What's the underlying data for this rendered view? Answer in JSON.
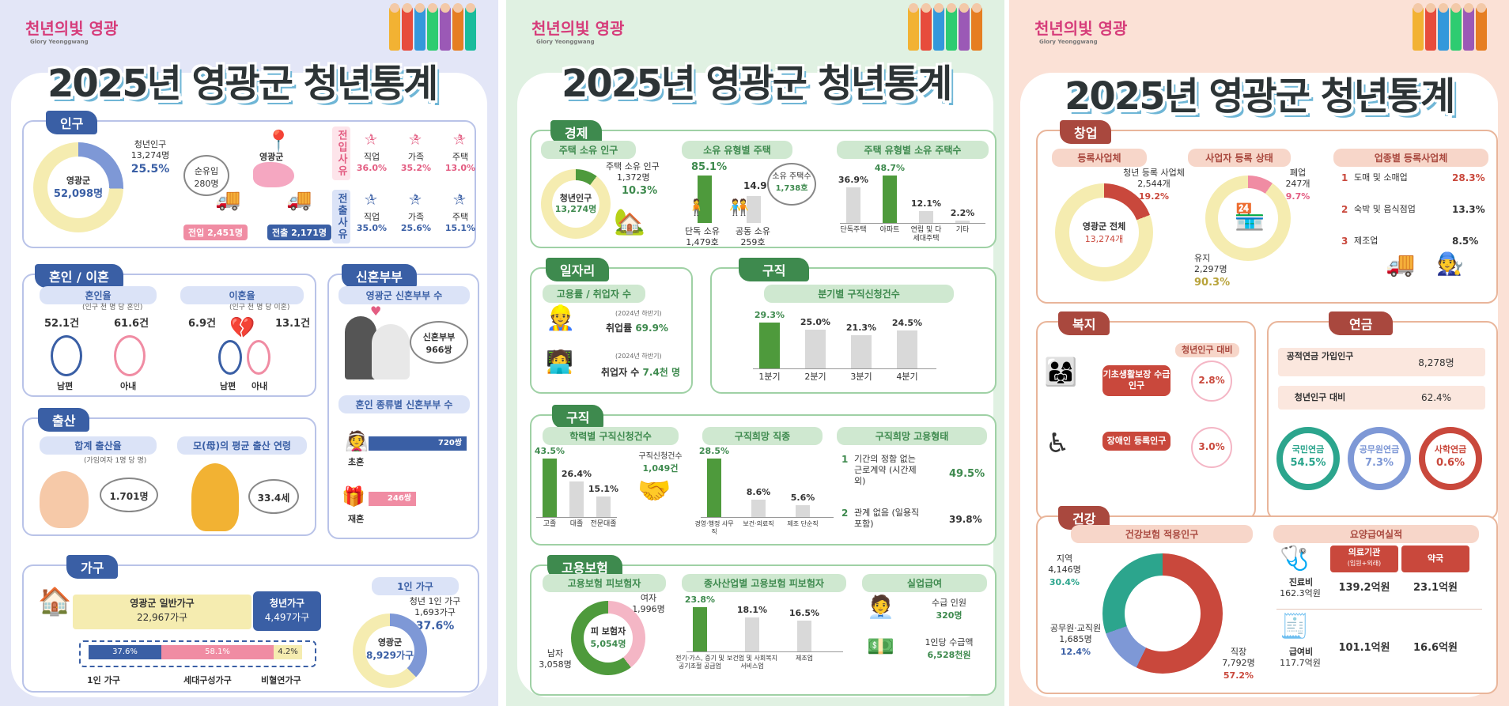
{
  "p1": {
    "logo": "천년의빛 영광",
    "logo_sub": "Glory Yeonggwang",
    "title": "2025년 영광군 청년통계",
    "pop": {
      "sec": "인구",
      "center1": "영광군",
      "center2": "52,098명",
      "young_l": "청년인구",
      "young_v": "13,274명",
      "young_p": "25.5%",
      "net_l": "순유입",
      "net_v": "280명",
      "city": "영광군",
      "in": "전입 2,451명",
      "out": "전출 2,171명",
      "in_v": "전입사유",
      "out_v": "전출사유",
      "in_r": [
        {
          "l": "직업",
          "v": "36.0%",
          "n": "1"
        },
        {
          "l": "가족",
          "v": "35.2%",
          "n": "2"
        },
        {
          "l": "주택",
          "v": "13.0%",
          "n": "3"
        }
      ],
      "out_r": [
        {
          "l": "직업",
          "v": "35.0%",
          "n": "1"
        },
        {
          "l": "가족",
          "v": "25.6%",
          "n": "2"
        },
        {
          "l": "주택",
          "v": "15.1%",
          "n": "3"
        }
      ]
    },
    "mar": {
      "sec": "혼인 / 이혼",
      "mar_sub": "혼인율",
      "mar_note": "(인구 천 명 당 혼인)",
      "m_h": "52.1건",
      "m_w": "61.6건",
      "div_sub": "이혼율",
      "div_note": "(인구 천 명 당 이혼)",
      "d_h": "6.9건",
      "d_w": "13.1건",
      "husband": "남편",
      "wife": "아내"
    },
    "nc": {
      "sec": "신혼부부",
      "sub1": "영광군 신혼부부 수",
      "count_l": "신혼부부",
      "count_v": "966쌍",
      "sub2": "혼인 종류별 신혼부부 수",
      "first_v": "720쌍",
      "first_l": "초혼",
      "re_v": "246쌍",
      "re_l": "재혼"
    },
    "birth": {
      "sec": "출산",
      "sub1": "합계 출산율",
      "note1": "(가임여자 1명 당 명)",
      "val1": "1.701명",
      "sub2": "모(母)의 평균 출산 연령",
      "val2": "33.4세"
    },
    "hh": {
      "sec": "가구",
      "gen_l": "영광군 일반가구",
      "gen_v": "22,967가구",
      "yh_l": "청년가구",
      "yh_v": "4,497가구",
      "b1": "37.6%",
      "b2": "58.1%",
      "b3": "4.2%",
      "l1": "1인 가구",
      "l2": "세대구성가구",
      "l3": "비혈연가구",
      "one_sub": "1인 가구",
      "one_l": "청년 1인 가구",
      "one_v": "1,693가구",
      "one_p": "37.6%",
      "c1": "영광군",
      "c2": "8,929가구"
    }
  },
  "p2": {
    "logo": "천년의빛 영광",
    "logo_sub": "Glory Yeonggwang",
    "title": "2025년 영광군 청년통계",
    "eco": {
      "sec": "경제",
      "sub1": "주택 소유 인구",
      "own_l": "주택 소유 인구",
      "own_v": "1,372명",
      "own_p": "10.3%",
      "c1": "청년인구",
      "c2": "13,274명",
      "sub2": "소유 유형별 주택",
      "s_p": "85.1%",
      "j_p": "14.9%",
      "s_l": "단독 소유",
      "s_v": "1,479호",
      "j_l": "공동 소유",
      "j_v": "259호",
      "hc_l": "소유 주택수",
      "hc_v": "1,738호",
      "sub3": "주택 유형별 소유 주택수",
      "types": [
        {
          "p": "36.9%",
          "l": "단독주택"
        },
        {
          "p": "48.7%",
          "l": "아파트"
        },
        {
          "p": "12.1%",
          "l": "연립 및 다세대주택"
        },
        {
          "p": "2.2%",
          "l": "기타"
        }
      ]
    },
    "job": {
      "sec": "일자리",
      "sub": "고용률 / 취업자 수",
      "n1": "(2024년 하반기)",
      "emp_l": "취업률",
      "emp_v": "69.9%",
      "n2": "(2024년 하반기)",
      "wk_l": "취업자 수",
      "wk_v": "7.4천 명"
    },
    "seek": {
      "sec": "구직",
      "sub": "분기별 구직신청건수",
      "q": [
        {
          "p": "29.3%",
          "l": "1분기"
        },
        {
          "p": "25.0%",
          "l": "2분기"
        },
        {
          "p": "21.3%",
          "l": "3분기"
        },
        {
          "p": "24.5%",
          "l": "4분기"
        }
      ]
    },
    "seek2": {
      "sec": "구직",
      "sub1": "학력별 구직신청건수",
      "tot_l": "구직신청건수",
      "tot_v": "1,049건",
      "edu": [
        {
          "p": "43.5%",
          "l": "고졸"
        },
        {
          "p": "26.4%",
          "l": "대졸"
        },
        {
          "p": "15.1%",
          "l": "전문대졸"
        }
      ],
      "sub2": "구직희망 직종",
      "occ": [
        {
          "p": "28.5%",
          "l": "경영·행정 사무직"
        },
        {
          "p": "8.6%",
          "l": "보건·의료직"
        },
        {
          "p": "5.6%",
          "l": "제조 단순직"
        }
      ],
      "sub3": "구직희망 고용형태",
      "f1_n": "1",
      "f1_l": "기간의 정함 없는 근로계약 (시간제 외)",
      "f1_v": "49.5%",
      "f2_n": "2",
      "f2_l": "관계 없음 (일용직 포함)",
      "f2_v": "39.8%"
    },
    "ins": {
      "sec": "고용보험",
      "sub1": "고용보험 피보험자",
      "f_l": "여자",
      "f_v": "1,996명",
      "m_l": "남자",
      "m_v": "3,058명",
      "c1": "피 보험자",
      "c2": "5,054명",
      "sub2": "종사산업별 고용보험 피보험자",
      "ind": [
        {
          "p": "23.8%",
          "l": "전기·가스, 증기 및 공기조절 공급업"
        },
        {
          "p": "18.1%",
          "l": "보건업 및 사회복지 서비스업"
        },
        {
          "p": "16.5%",
          "l": "제조업"
        }
      ],
      "sub3": "실업급여",
      "r_l": "수급 인원",
      "r_v": "320명",
      "a_l": "1인당 수급액",
      "a_v": "6,528천원"
    }
  },
  "p3": {
    "logo": "천년의빛 영광",
    "logo_sub": "Glory Yeonggwang",
    "title": "2025년 영광군 청년통계",
    "st": {
      "sec": "창업",
      "sub1": "등록사업체",
      "y_l": "청년 등록 사업체",
      "y_v": "2,544개",
      "y_p": "19.2%",
      "c1": "영광군 전체",
      "c2": "13,274개",
      "sub2": "사업자 등록 상태",
      "cl_l": "폐업",
      "cl_v": "247개",
      "cl_p": "9.7%",
      "op_l": "유지",
      "op_v": "2,297명",
      "op_p": "90.3%",
      "sub3": "업종별 등록사업체",
      "ind": [
        {
          "n": "1",
          "l": "도매 및 소매업",
          "v": "28.3%"
        },
        {
          "n": "2",
          "l": "숙박 및 음식점업",
          "v": "13.3%"
        },
        {
          "n": "3",
          "l": "제조업",
          "v": "8.5%"
        }
      ]
    },
    "wel": {
      "sec": "복지",
      "note": "청년인구 대비",
      "a": "기초생활보장 수급인구",
      "a_v": "2.8%",
      "b": "장애인 등록인구",
      "b_v": "3.0%"
    },
    "pen": {
      "sec": "연금",
      "r1_l": "공적연금 가입인구",
      "r1_v": "8,278명",
      "r2_l": "청년인구 대비",
      "r2_v": "62.4%",
      "c": [
        {
          "l": "국민연금",
          "v": "54.5%"
        },
        {
          "l": "공무원연금",
          "v": "7.3%"
        },
        {
          "l": "사학연금",
          "v": "0.6%"
        }
      ]
    },
    "hea": {
      "sec": "건강",
      "sub1": "건강보험 적용인구",
      "r_l": "지역",
      "r_v": "4,146명",
      "r_p": "30.4%",
      "g_l": "공무원·교직원",
      "g_v": "1,685명",
      "g_p": "12.4%",
      "w_l": "직장",
      "w_v": "7,792명",
      "w_p": "57.2%",
      "sub2": "요양급여실적",
      "h1": "의료기관",
      "h1_n": "(입원+외래)",
      "h2": "약국",
      "t_l": "진료비",
      "t_v": "162.3억원",
      "t1": "139.2억원",
      "t2": "23.1억원",
      "p_l": "급여비",
      "p_v": "117.7억원",
      "p1": "101.1억원",
      "p2": "16.6억원"
    }
  }
}
